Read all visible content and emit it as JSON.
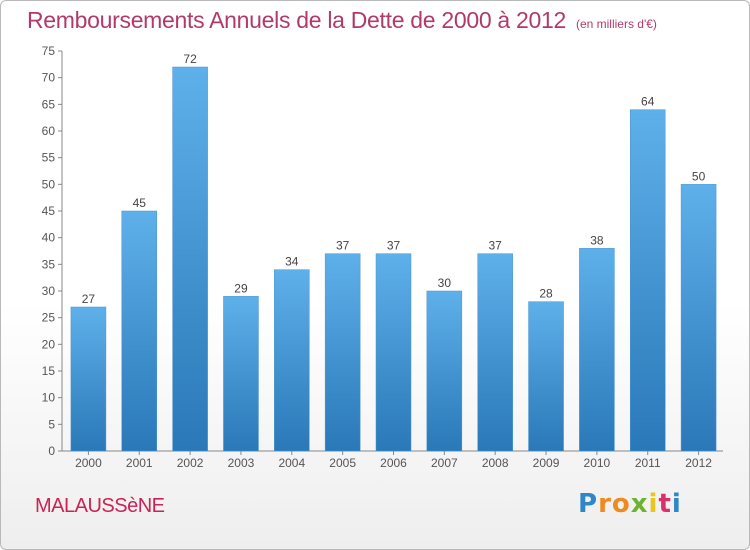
{
  "title": "Remboursements Annuels de la Dette de 2000 à 2012",
  "unit_label": "(en milliers d'€)",
  "city": "MALAUSSèNE",
  "brand": {
    "letters": [
      "P",
      "r",
      "o",
      "x",
      "i",
      "t",
      "i"
    ],
    "colors": [
      "#2f86c8",
      "#f08a1e",
      "#f08a1e",
      "#6bb52e",
      "#e8c61a",
      "#d8326a",
      "#2f86c8"
    ]
  },
  "colors": {
    "bar_top": "#5eb0ea",
    "bar_bottom": "#2a78b8",
    "title": "#b23a6b",
    "city": "#cc2255"
  },
  "chart_data": {
    "type": "bar",
    "categories": [
      "2000",
      "2001",
      "2002",
      "2003",
      "2004",
      "2005",
      "2006",
      "2007",
      "2008",
      "2009",
      "2010",
      "2011",
      "2012"
    ],
    "values": [
      27,
      45,
      72,
      29,
      34,
      37,
      37,
      30,
      37,
      28,
      38,
      64,
      50
    ],
    "ylim": [
      0,
      75
    ],
    "yticks": [
      0,
      5,
      10,
      15,
      20,
      25,
      30,
      35,
      40,
      45,
      50,
      55,
      60,
      65,
      70,
      75
    ],
    "grid": false,
    "data_labels": true
  }
}
